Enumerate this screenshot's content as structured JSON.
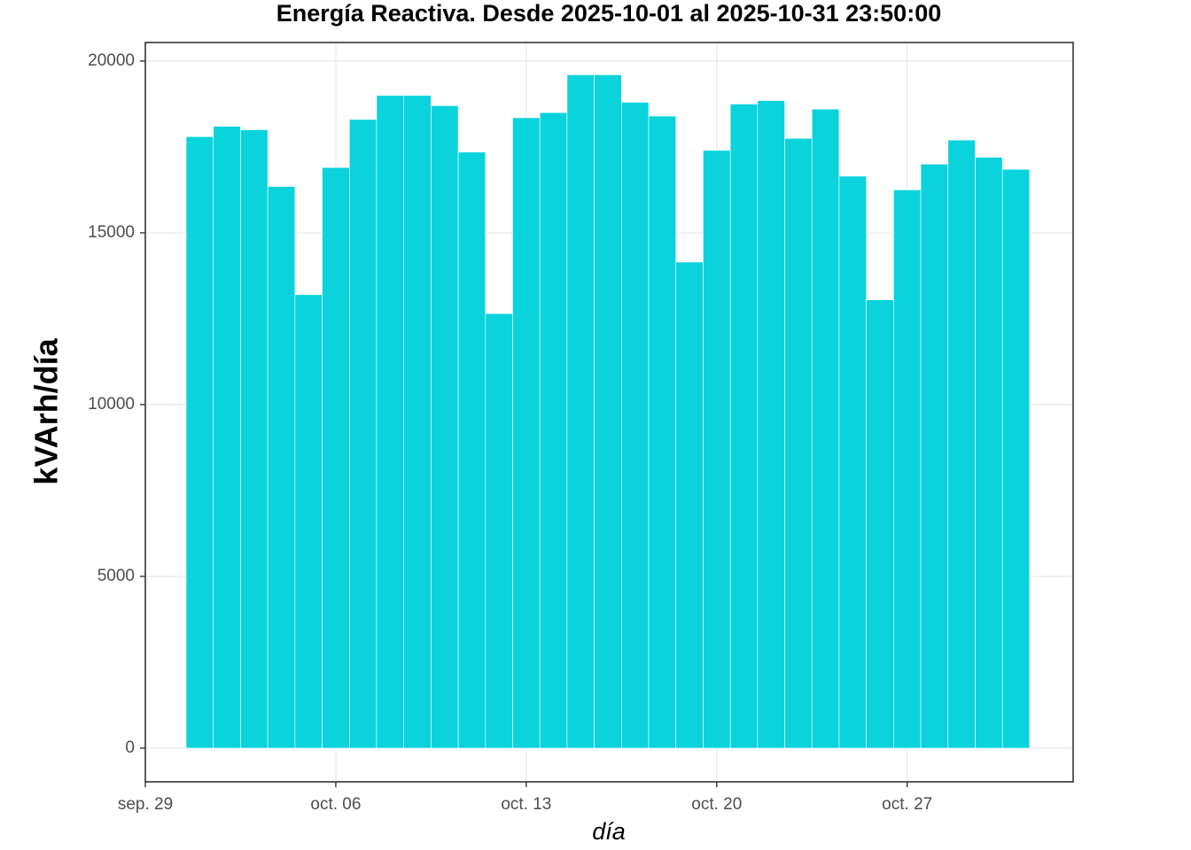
{
  "chart_data": {
    "type": "bar",
    "title": "Energía Reactiva. Desde  2025-10-01  al  2025-10-31 23:50:00",
    "x_label": "día",
    "y_label": "kVArh/día",
    "x": [
      1,
      2,
      3,
      4,
      5,
      6,
      7,
      8,
      9,
      10,
      11,
      12,
      13,
      14,
      15,
      16,
      17,
      18,
      19,
      20,
      21,
      22,
      23,
      24,
      25,
      26,
      27,
      28,
      29,
      30,
      31
    ],
    "values": [
      17800,
      18100,
      18000,
      16350,
      13200,
      16900,
      18300,
      19000,
      19000,
      18700,
      17350,
      12650,
      18350,
      18500,
      19600,
      19600,
      18800,
      18400,
      14150,
      17400,
      18750,
      18850,
      17750,
      18600,
      16650,
      13050,
      16250,
      17000,
      17700,
      17200,
      16850
    ],
    "color": "#0bd3dc",
    "xlim": [
      -1,
      33.1
    ],
    "xticks": [
      {
        "value": -1,
        "label": "sep. 29"
      },
      {
        "value": 6,
        "label": "oct. 06"
      },
      {
        "value": 13,
        "label": "oct. 13"
      },
      {
        "value": 20,
        "label": "oct. 20"
      },
      {
        "value": 27,
        "label": "oct. 27"
      }
    ],
    "ylim": [
      -980,
      20540
    ],
    "yticks": [
      0,
      5000,
      10000,
      15000,
      20000
    ],
    "grid": true
  }
}
